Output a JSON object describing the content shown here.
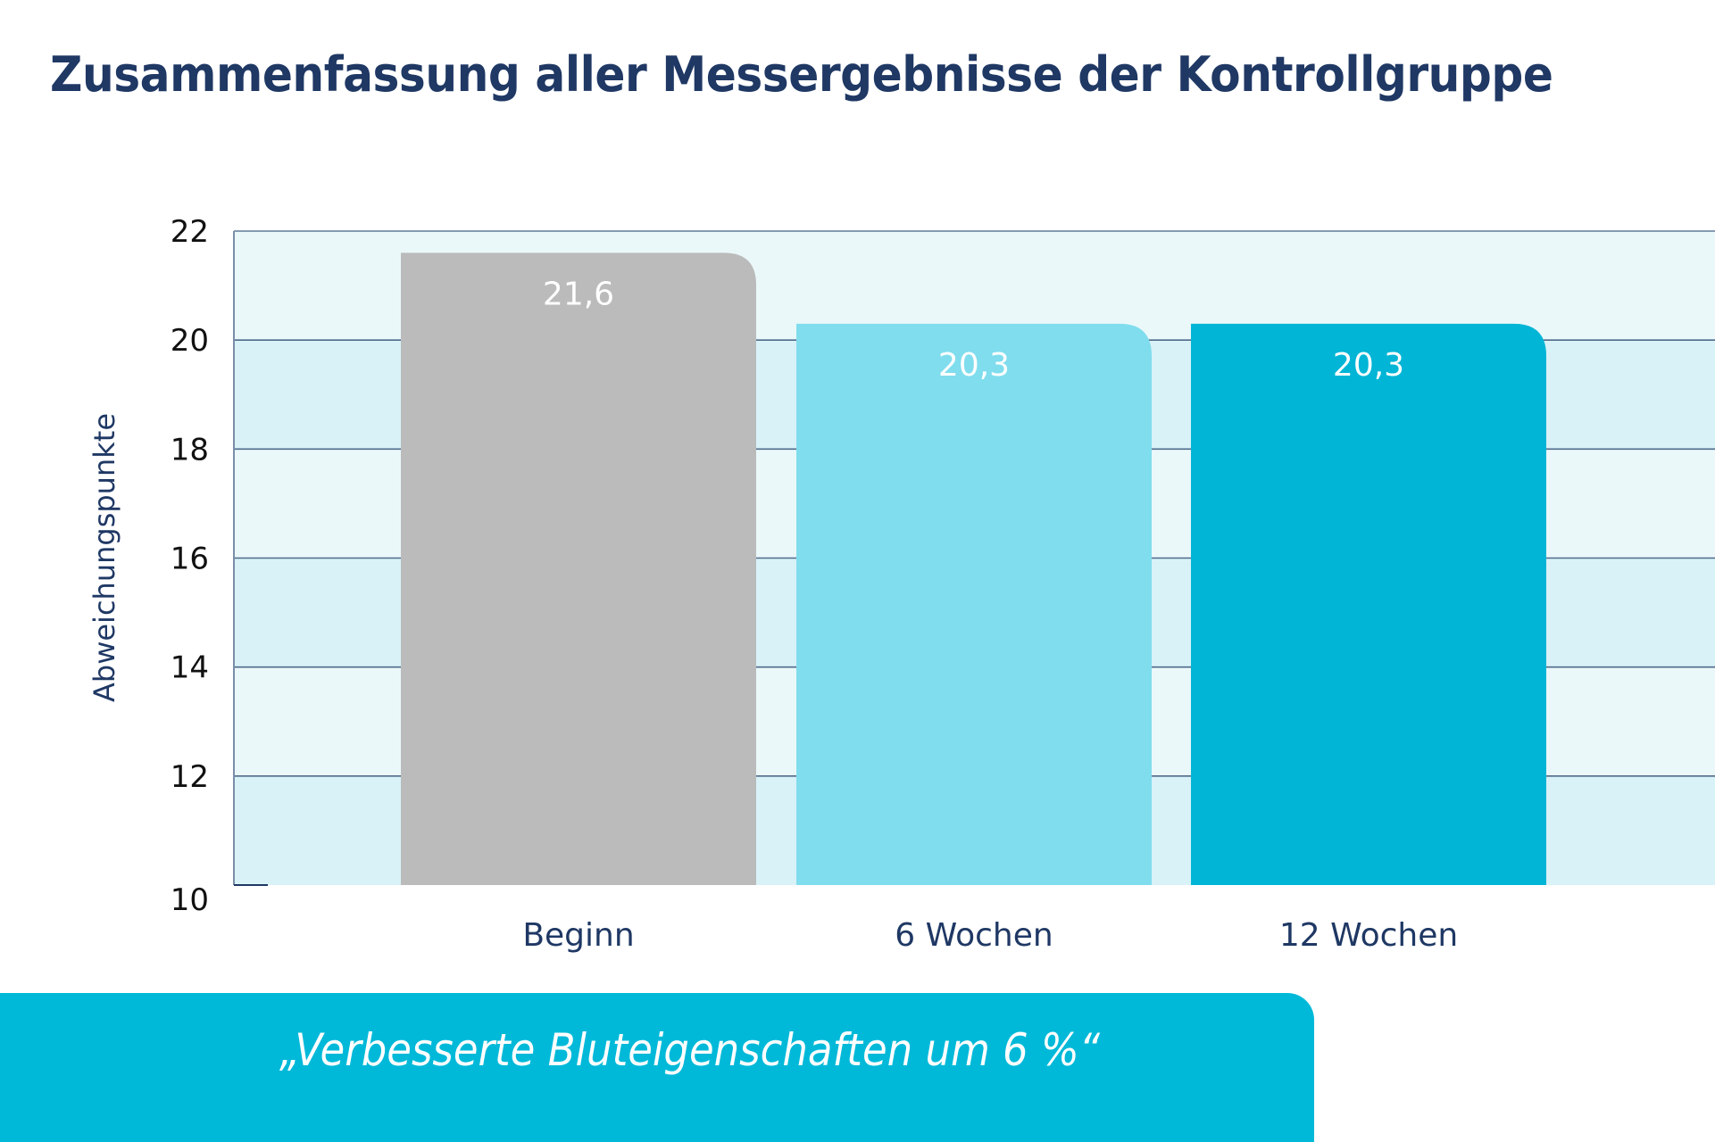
{
  "chart_data": {
    "type": "bar",
    "title": "Zusammenfassung aller Messergebnisse der Kontrollgruppe",
    "xlabel": "",
    "ylabel": "Abweichungspunkte",
    "categories": [
      "Beginn",
      "6 Wochen",
      "12 Wochen"
    ],
    "values": [
      21.6,
      20.3,
      20.3
    ],
    "value_labels": [
      "21,6",
      "20,3",
      "20,3"
    ],
    "ylim": [
      10,
      22
    ],
    "yticks": [
      10,
      12,
      14,
      16,
      18,
      20,
      22
    ],
    "grid": true,
    "legend": "none",
    "bar_colors": [
      "#bbbbbb",
      "#80dded",
      "#00b5d6"
    ]
  },
  "banner": {
    "text": "„Verbesserte Bluteigenschaften um 6 %“",
    "color": "#00b9d9"
  },
  "colors": {
    "title": "#1f3864",
    "band_light": "#eaf8fa",
    "band_dark": "#d8f2f7",
    "gridline": "#3e5a7e"
  }
}
